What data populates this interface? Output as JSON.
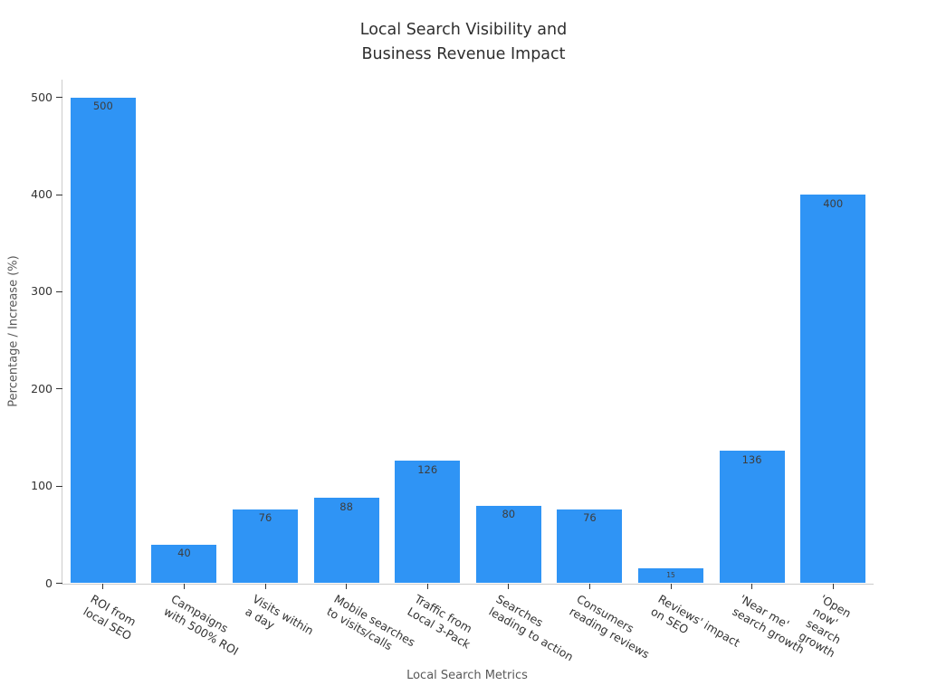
{
  "chart_data": {
    "type": "bar",
    "title": "Local Search Visibility and\nBusiness Revenue Impact",
    "xlabel": "Local Search Metrics",
    "ylabel": "Percentage / Increase (%)",
    "categories": [
      "ROI from\nlocal SEO",
      "Campaigns\nwith 500% ROI",
      "Visits within\na day",
      "Mobile searches\nto visits/calls",
      "Traffic from\nLocal 3-Pack",
      "Searches\nleading to action",
      "Consumers\nreading reviews",
      "Reviews' impact\non SEO",
      "'Near me'\nsearch growth",
      "'Open now'\nsearch growth"
    ],
    "values": [
      500,
      40,
      76,
      88,
      126,
      80,
      76,
      15,
      136,
      400
    ],
    "bar_labels": [
      "500",
      "40",
      "76",
      "88",
      "126",
      "80",
      "76",
      "15",
      "136",
      "400"
    ],
    "yticks": [
      0,
      100,
      200,
      300,
      400,
      500
    ],
    "ylim": [
      0,
      500
    ],
    "grid": false,
    "legend": "none",
    "colors": {
      "bar": "#2f94f5",
      "title_text": "#2e2e2e",
      "tick_text": "#333333",
      "axis_label_text": "#595959",
      "value_label_text": "#3d3d3d",
      "spine": "#cccccc"
    }
  }
}
